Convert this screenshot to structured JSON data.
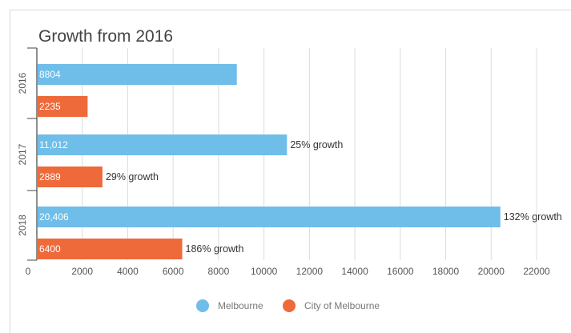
{
  "chart_data": {
    "type": "bar",
    "orientation": "horizontal",
    "title": "Growth from 2016",
    "categories": [
      "2016",
      "2017",
      "2018"
    ],
    "series": [
      {
        "name": "Melbourne",
        "color": "#6fbde9",
        "values": [
          8804,
          11012,
          20406
        ],
        "labels": [
          "8804",
          "11,012",
          "20,406"
        ],
        "annotations": [
          "",
          "25% growth",
          "132% growth"
        ]
      },
      {
        "name": "City of Melbourne",
        "color": "#ef6a3a",
        "values": [
          2235,
          2889,
          6400
        ],
        "labels": [
          "2235",
          "2889",
          "6400"
        ],
        "annotations": [
          "",
          "29% growth",
          "186% growth"
        ]
      }
    ],
    "xticks": [
      "0",
      "2000",
      "4000",
      "6000",
      "8000",
      "10000",
      "12000",
      "14000",
      "16000",
      "18000",
      "20000",
      "22000"
    ],
    "xlim": [
      0,
      22000
    ],
    "grid": true,
    "legend_position": "bottom"
  }
}
